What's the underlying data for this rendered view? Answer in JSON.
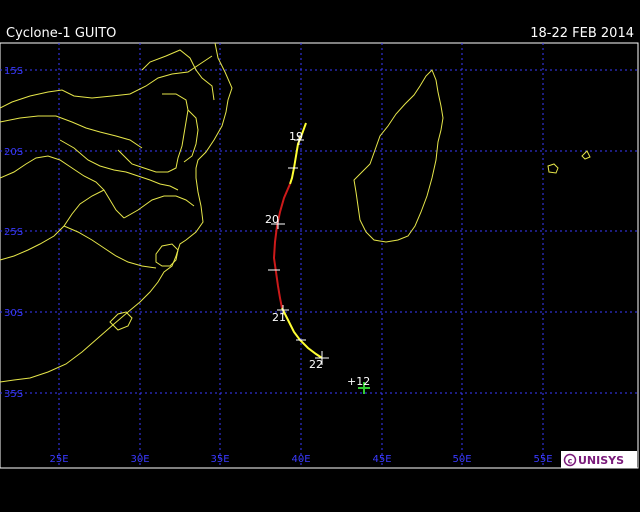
{
  "header": {
    "title": "Cyclone-1 GUITO",
    "date_range": "18-22 FEB 2014"
  },
  "map": {
    "lat_labels": [
      "15S",
      "20S",
      "25S",
      "30S",
      "35S"
    ],
    "lon_labels": [
      "25E",
      "30E",
      "35E",
      "40E",
      "45E",
      "50E",
      "55E"
    ],
    "grid_color": "#3a3aff",
    "coast_color": "#e6e64a",
    "track_colors": {
      "storm": "#ffff33",
      "cyclone": "#cc1a1a",
      "forecast": "#33cc33"
    },
    "day_labels": [
      "19",
      "20",
      "21",
      "22"
    ],
    "forecast_label": "+12",
    "logo": "UNISYS"
  }
}
